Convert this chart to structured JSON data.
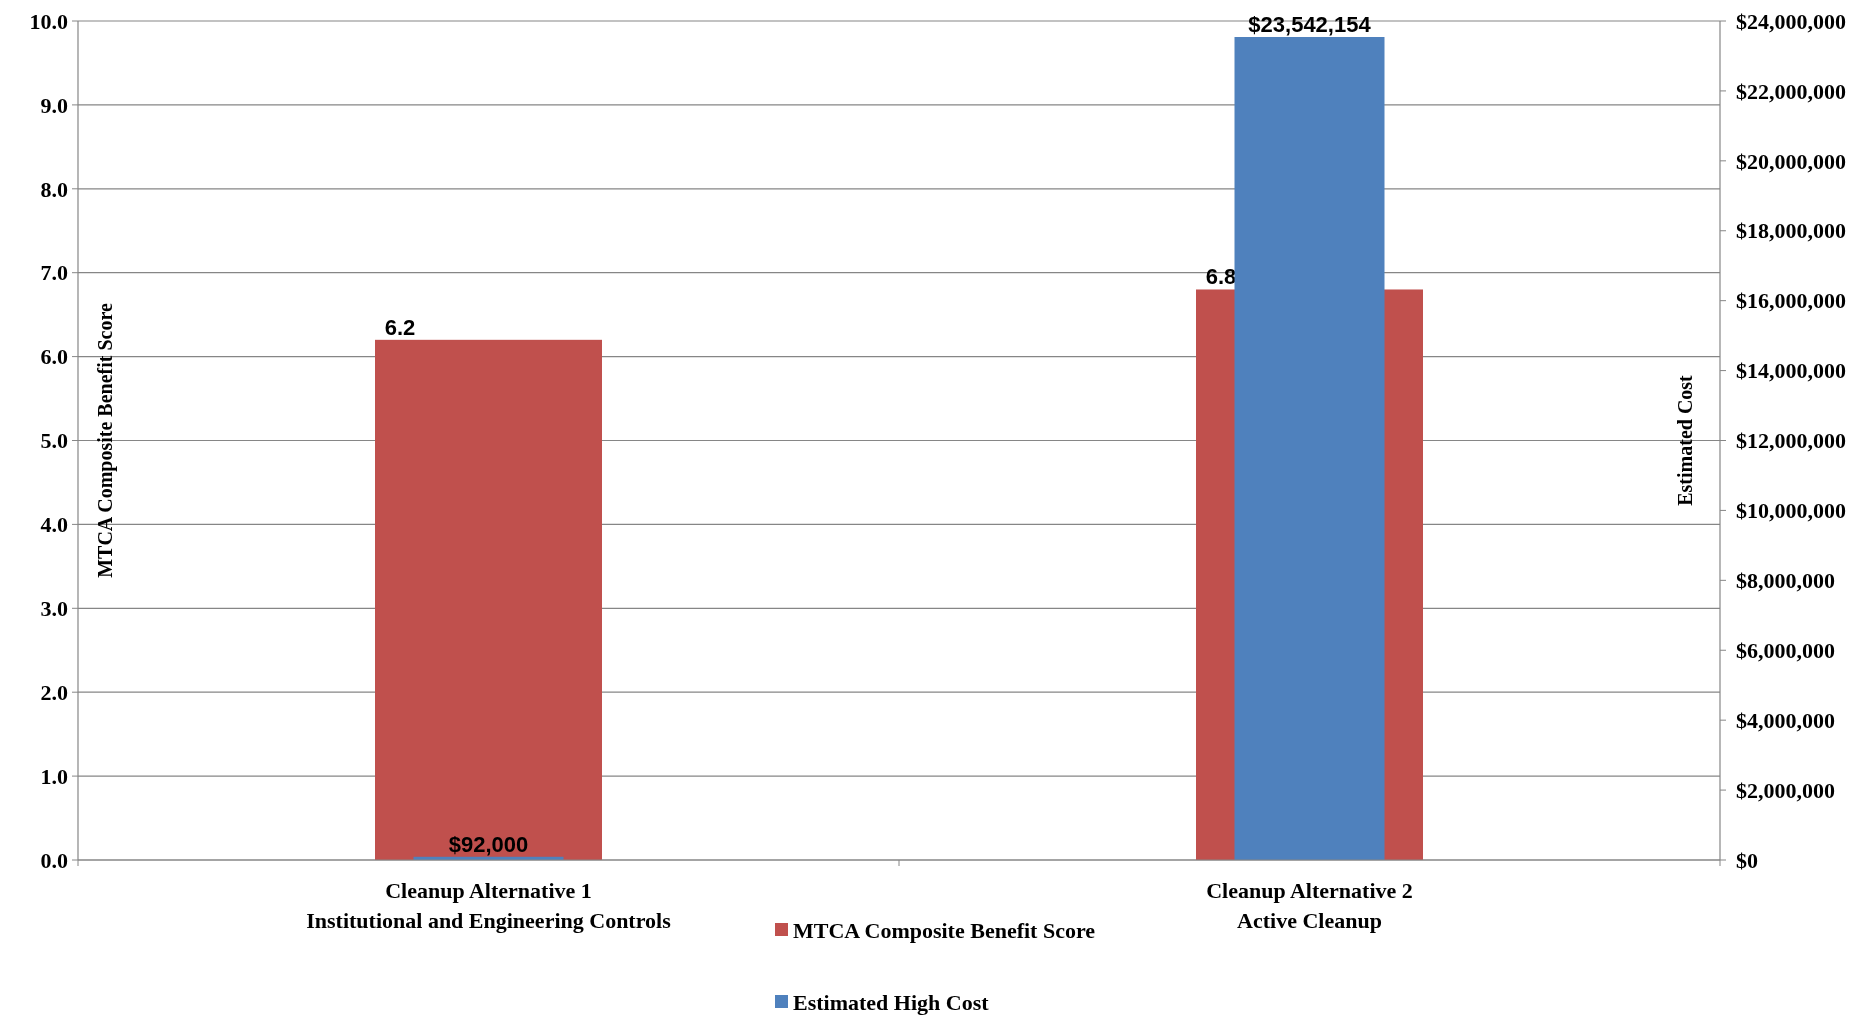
{
  "chart_data": {
    "type": "bar",
    "categories": [
      "Cleanup Alternative 1\nInstitutional and Engineering Controls",
      "Cleanup Alternative 2\nActive Cleanup"
    ],
    "series": [
      {
        "name": "MTCA Composite Benefit Score",
        "color": "#c0504d",
        "values": [
          6.2,
          6.8
        ],
        "value_labels": [
          "6.2",
          "6.8"
        ]
      },
      {
        "name": "Estimated High Cost",
        "color": "#4f81bd",
        "values": [
          92000,
          23542154
        ],
        "axis": "y2",
        "value_labels": [
          "$92,000",
          "$23,542,154"
        ]
      }
    ],
    "ylabel": "MTCA Composite Benefit Score",
    "y2label": "Estimated Cost",
    "ylim": [
      0,
      10
    ],
    "yticks": [
      {
        "value": 0,
        "label": "0.0"
      },
      {
        "value": 1,
        "label": "1.0"
      },
      {
        "value": 2,
        "label": "2.0"
      },
      {
        "value": 3,
        "label": "3.0"
      },
      {
        "value": 4,
        "label": "4.0"
      },
      {
        "value": 5,
        "label": "5.0"
      },
      {
        "value": 6,
        "label": "6.0"
      },
      {
        "value": 7,
        "label": "7.0"
      },
      {
        "value": 8,
        "label": "8.0"
      },
      {
        "value": 9,
        "label": "9.0"
      },
      {
        "value": 10,
        "label": "10.0"
      }
    ],
    "y2lim": [
      0,
      24000000
    ],
    "y2ticks": [
      {
        "value": 0,
        "label": "$0"
      },
      {
        "value": 2000000,
        "label": "$2,000,000"
      },
      {
        "value": 4000000,
        "label": "$4,000,000"
      },
      {
        "value": 6000000,
        "label": "$6,000,000"
      },
      {
        "value": 8000000,
        "label": "$8,000,000"
      },
      {
        "value": 10000000,
        "label": "$10,000,000"
      },
      {
        "value": 12000000,
        "label": "$12,000,000"
      },
      {
        "value": 14000000,
        "label": "$14,000,000"
      },
      {
        "value": 16000000,
        "label": "$16,000,000"
      },
      {
        "value": 18000000,
        "label": "$18,000,000"
      },
      {
        "value": 20000000,
        "label": "$20,000,000"
      },
      {
        "value": 22000000,
        "label": "$22,000,000"
      },
      {
        "value": 24000000,
        "label": "$24,000,000"
      }
    ],
    "grid": "y",
    "legend": "bottom"
  }
}
